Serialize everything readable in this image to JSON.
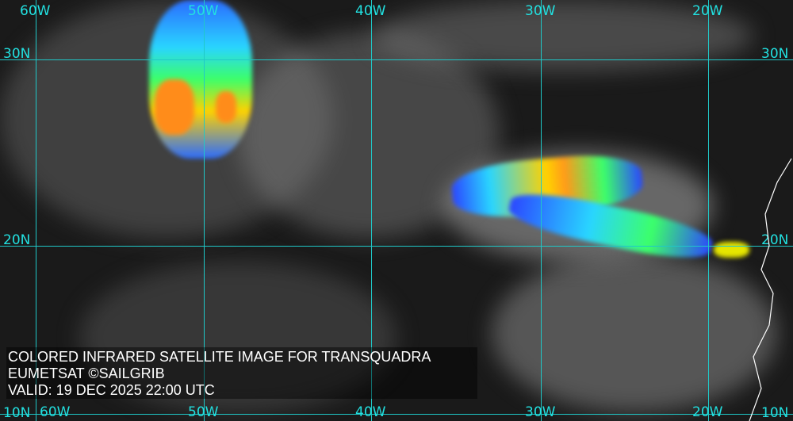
{
  "caption": {
    "title": "COLORED INFRARED SATELLITE IMAGE FOR TRANSQUADRA",
    "source": "EUMETSAT ©SAILGRIB",
    "valid": "VALID:  19 DEC 2025 22:00 UTC"
  },
  "grid": {
    "longitudes": [
      "60W",
      "50W",
      "40W",
      "30W",
      "20W"
    ],
    "latitudes": [
      "30N",
      "20N",
      "10N"
    ]
  },
  "colors": {
    "grid": "#1fc8c8",
    "cold_tops": "#ff8c00",
    "mid_tops": "#ffff00",
    "low_tops": "#0000ff"
  }
}
